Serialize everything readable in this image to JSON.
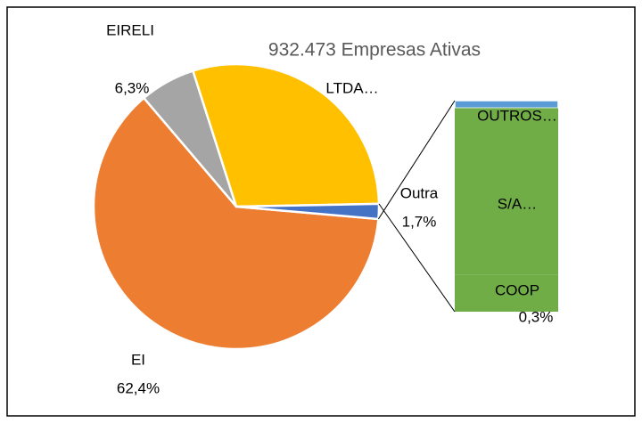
{
  "chart_data": [
    {
      "type": "pie",
      "title": "932.473 Empresas Ativas",
      "categories": [
        "EI",
        "EIRELI",
        "LTDA…",
        "Outra"
      ],
      "values": [
        62.4,
        6.3,
        29.6,
        1.7
      ],
      "value_labels": [
        "62,4%",
        "6,3%",
        null,
        "1,7%"
      ],
      "colors": [
        "#ed7d31",
        "#a5a5a5",
        "#ffc000",
        "#4472c4"
      ]
    },
    {
      "type": "bar",
      "categories": [
        "OUTROS…",
        "S/A…",
        "COOP"
      ],
      "values": [
        0.06,
        1.34,
        0.3
      ],
      "value_labels": [
        null,
        null,
        "0,3%"
      ],
      "colors": [
        "#5b9bd5",
        "#70ad47",
        "#70ad47"
      ]
    }
  ]
}
